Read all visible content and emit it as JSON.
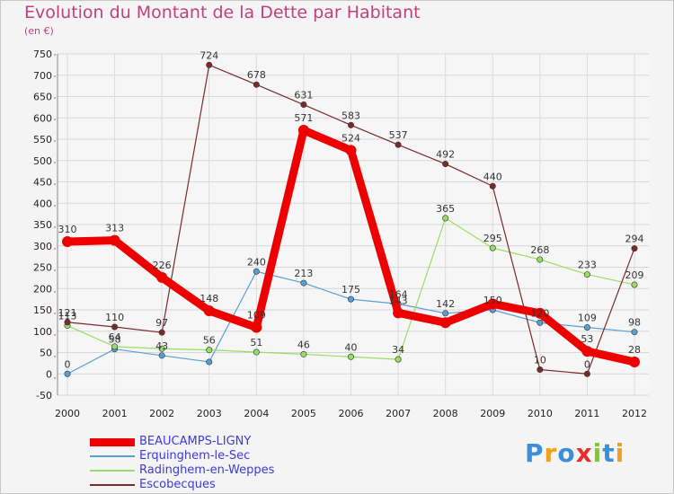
{
  "chart_data": {
    "type": "line",
    "title": "Evolution du Montant de la Dette par Habitant",
    "subtitle": "(en €)",
    "x": [
      "2000",
      "2001",
      "2002",
      "2003",
      "2004",
      "2005",
      "2006",
      "2007",
      "2008",
      "2009",
      "2010",
      "2011",
      "2012"
    ],
    "ylim": [
      -50,
      750
    ],
    "yticks": [
      -50,
      0,
      50,
      100,
      150,
      200,
      250,
      300,
      350,
      400,
      450,
      500,
      550,
      600,
      650,
      700,
      750
    ],
    "grid": true,
    "legend_position": "bottom-left",
    "series": [
      {
        "name": "BEAUCAMPS-LIGNY",
        "color": "#ee0000",
        "values": [
          310,
          313,
          226,
          148,
          109,
          571,
          524,
          143,
          120,
          164,
          142,
          53,
          28
        ],
        "labels": [
          "310",
          "313",
          "226",
          "148",
          "109",
          "571",
          "524",
          "143",
          "",
          "",
          "",
          "53",
          "28"
        ]
      },
      {
        "name": "Erquinghem-le-Sec",
        "color": "#5a9fd4",
        "values": [
          0,
          58,
          43,
          28,
          240,
          213,
          175,
          164,
          142,
          150,
          120,
          109,
          98
        ],
        "labels": [
          "0",
          "58",
          "43",
          "",
          "240",
          "213",
          "175",
          "164",
          "142",
          "150",
          "120",
          "109",
          "98"
        ]
      },
      {
        "name": "Radinghem-en-Weppes",
        "color": "#99dd66",
        "values": [
          113,
          64,
          59,
          56,
          51,
          46,
          40,
          34,
          365,
          295,
          268,
          233,
          209
        ],
        "labels": [
          "113",
          "64",
          "",
          "56",
          "51",
          "46",
          "40",
          "34",
          "365",
          "295",
          "268",
          "233",
          "209"
        ]
      },
      {
        "name": "Escobecques",
        "color": "#7a2a2a",
        "values": [
          121,
          110,
          97,
          724,
          678,
          631,
          583,
          537,
          492,
          440,
          10,
          0,
          294
        ],
        "labels": [
          "121",
          "110",
          "97",
          "724",
          "678",
          "631",
          "583",
          "537",
          "492",
          "440",
          "10",
          "0",
          "294"
        ]
      }
    ]
  },
  "logo": {
    "letters": [
      "P",
      "r",
      "o",
      "x",
      "i",
      "t",
      "i"
    ],
    "colors": [
      "#3a8fd8",
      "#f0a020",
      "#3a8fd8",
      "#e83030",
      "#88c040",
      "#3a8fd8",
      "#f0a020"
    ]
  }
}
